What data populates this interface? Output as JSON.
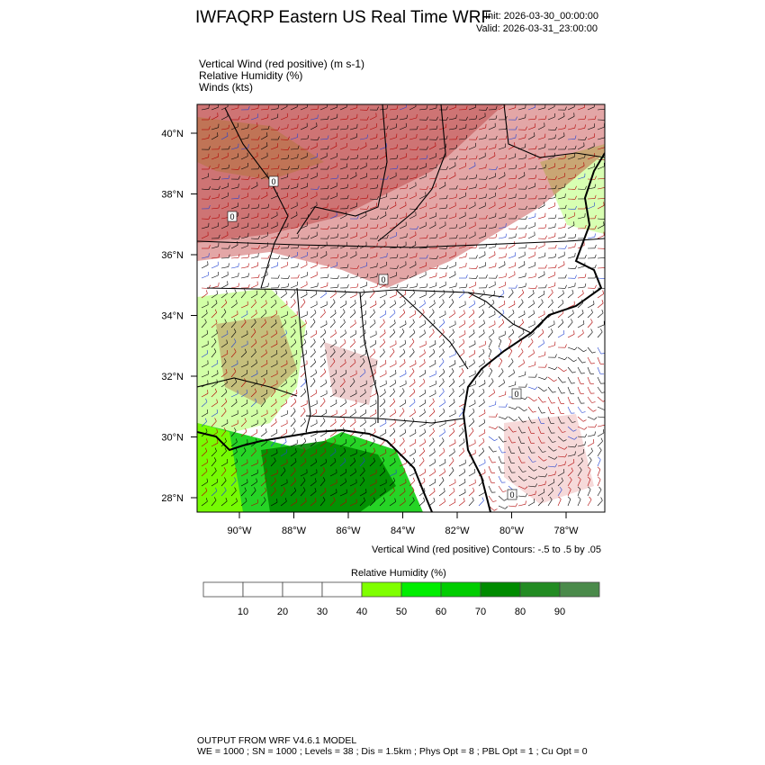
{
  "header": {
    "title": "IWFAQRP Eastern US Real Time WRF",
    "init": "Init: 2026-03-30_00:00:00",
    "valid": "Valid: 2026-03-31_23:00:00"
  },
  "fields": [
    "Vertical Wind (red positive)   (m s-1)",
    "Relative Humidity   (%)",
    "Winds   (kts)"
  ],
  "map": {
    "lat_labels": [
      "40°N",
      "38°N",
      "36°N",
      "34°N",
      "32°N",
      "30°N",
      "28°N"
    ],
    "lon_labels": [
      "90°W",
      "88°W",
      "86°W",
      "84°W",
      "82°W",
      "80°W",
      "78°W"
    ],
    "contour_label": "0"
  },
  "contour_note": "Vertical Wind (red positive) Contours: -.5 to .5 by .05",
  "colorbar": {
    "title": "Relative Humidity  (%)",
    "ticks": [
      "10",
      "20",
      "30",
      "40",
      "50",
      "60",
      "70",
      "80",
      "90"
    ],
    "colors": [
      "#ffffff",
      "#ffffff",
      "#ffffff",
      "#ffffff",
      "#7fff00",
      "#00ee00",
      "#00cd00",
      "#008b00",
      "#228b22",
      "#4a8a4a"
    ]
  },
  "footer": {
    "line1": "OUTPUT FROM WRF V4.6.1 MODEL",
    "line2": "WE = 1000 ; SN = 1000 ; Levels = 38 ; Dis = 1.5km ; Phys Opt = 8 ; PBL Opt = 1 ; Cu Opt = 0"
  }
}
